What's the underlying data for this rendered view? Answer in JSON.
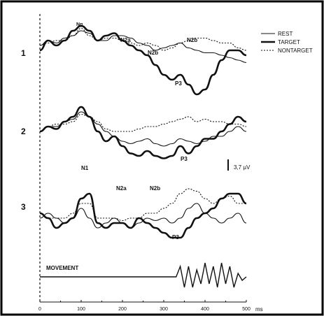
{
  "legend": [
    {
      "label": "REST",
      "style": "thin"
    },
    {
      "label": "TARGET",
      "style": "thick"
    },
    {
      "label": "NONTARGET",
      "style": "dotted"
    }
  ],
  "movement_label": "MOVEMENT",
  "scale_bar_label": "3,7 µV",
  "x_unit": "ms",
  "x_ticks": [
    "0",
    "100",
    "200",
    "300",
    "400",
    "500"
  ],
  "chart_data": {
    "type": "line",
    "xlim": [
      0,
      500
    ],
    "colors": {
      "ink": "#111111",
      "frame": "#000000"
    },
    "panels": [
      {
        "label": "1",
        "annotations": [
          "Ng",
          "N2a",
          "N2b",
          "N2b",
          "P3"
        ],
        "series": [
          {
            "name": "REST",
            "x": [
              0,
              20,
              40,
              60,
              80,
              100,
              120,
              140,
              160,
              180,
              200,
              220,
              240,
              260,
              280,
              300,
              320,
              340,
              360,
              380,
              400,
              420,
              440,
              460,
              480,
              500
            ],
            "y": [
              1,
              2,
              1.5,
              2.5,
              3,
              4,
              3.5,
              2,
              2,
              3,
              3,
              2.5,
              1.5,
              1,
              0,
              0.5,
              1,
              1.5,
              0.5,
              0,
              -0.5,
              -0.5,
              -1,
              -1.5,
              -2,
              -2.5
            ]
          },
          {
            "name": "TARGET",
            "x": [
              0,
              20,
              40,
              60,
              80,
              100,
              120,
              140,
              160,
              180,
              200,
              220,
              240,
              260,
              280,
              300,
              320,
              340,
              360,
              380,
              400,
              420,
              440,
              460,
              480,
              500
            ],
            "y": [
              0,
              2,
              1,
              2,
              4,
              5,
              4,
              2,
              3,
              3.5,
              2,
              1,
              0,
              -1,
              -3,
              -5,
              -6,
              -5,
              -7,
              -9,
              -8,
              -5,
              -2,
              0,
              0,
              -1
            ]
          },
          {
            "name": "NONTARGET",
            "x": [
              0,
              20,
              40,
              60,
              80,
              100,
              120,
              140,
              160,
              180,
              200,
              220,
              240,
              260,
              280,
              300,
              320,
              340,
              360,
              380,
              400,
              420,
              440,
              460,
              480,
              500
            ],
            "y": [
              1,
              1.5,
              2,
              2,
              3,
              4.5,
              3,
              2,
              2.5,
              2.5,
              2,
              1.5,
              1,
              1.5,
              1,
              0,
              0.5,
              1.5,
              2,
              2.5,
              2.5,
              2,
              1.5,
              1.5,
              0.5,
              0
            ]
          }
        ]
      },
      {
        "label": "2",
        "annotations": [
          "P3"
        ],
        "series": [
          {
            "name": "REST",
            "x": [
              0,
              20,
              40,
              60,
              80,
              100,
              120,
              140,
              160,
              180,
              200,
              220,
              240,
              260,
              280,
              300,
              320,
              340,
              360,
              380,
              400,
              420,
              440,
              460,
              480,
              500
            ],
            "y": [
              0,
              1,
              1,
              2,
              2.5,
              4,
              3,
              1.5,
              0,
              -1,
              -2,
              -2.5,
              -2,
              -1.5,
              -2.5,
              -3,
              -2.5,
              -1.5,
              -2,
              -2.5,
              -2,
              -1,
              -1,
              0,
              1,
              0
            ]
          },
          {
            "name": "TARGET",
            "x": [
              0,
              20,
              40,
              60,
              80,
              100,
              120,
              140,
              160,
              180,
              200,
              220,
              240,
              260,
              280,
              300,
              320,
              340,
              360,
              380,
              400,
              420,
              440,
              460,
              480,
              500
            ],
            "y": [
              0,
              1,
              0.5,
              2,
              3,
              5,
              3,
              0,
              -2,
              -1,
              -3,
              -4.5,
              -5,
              -4,
              -5,
              -5.5,
              -5,
              -3,
              -4.5,
              -3,
              -1.5,
              -1.5,
              0,
              1.5,
              3,
              2
            ]
          },
          {
            "name": "NONTARGET",
            "x": [
              0,
              20,
              40,
              60,
              80,
              100,
              120,
              140,
              160,
              180,
              200,
              220,
              240,
              260,
              280,
              300,
              320,
              340,
              360,
              380,
              400,
              420,
              440,
              460,
              480,
              500
            ],
            "y": [
              0,
              1,
              1.5,
              1.5,
              2,
              3.5,
              3,
              2,
              0.5,
              0,
              0,
              0,
              0.5,
              1,
              1,
              1.5,
              2,
              2.5,
              3,
              2,
              2.5,
              2,
              2,
              1.5,
              1.5,
              1
            ]
          }
        ]
      },
      {
        "label": "3",
        "annotations": [
          "N1",
          "N2a",
          "N2b",
          "P3"
        ],
        "series": [
          {
            "name": "REST",
            "x": [
              0,
              20,
              40,
              60,
              80,
              100,
              120,
              140,
              160,
              180,
              200,
              220,
              240,
              260,
              280,
              300,
              320,
              340,
              360,
              380,
              400,
              420,
              440,
              460,
              480,
              500
            ],
            "y": [
              -1,
              0,
              -1,
              -2,
              -1,
              1,
              -1,
              -3,
              -2,
              -1,
              -2,
              -3,
              -2,
              -1,
              -1.5,
              -1,
              -2,
              -1,
              1,
              2,
              0,
              -1,
              -2,
              -1,
              0,
              -2
            ]
          },
          {
            "name": "TARGET",
            "x": [
              0,
              20,
              40,
              60,
              80,
              100,
              120,
              140,
              160,
              180,
              200,
              220,
              240,
              260,
              280,
              300,
              320,
              340,
              360,
              380,
              400,
              420,
              440,
              460,
              480,
              500
            ],
            "y": [
              0,
              -1,
              -3,
              -2,
              -1,
              3,
              4,
              -2,
              -3,
              -2,
              -2,
              -3,
              -1,
              -2,
              -3,
              -4,
              -5,
              -5,
              -3,
              -1,
              0,
              1,
              3,
              4,
              4,
              2
            ]
          },
          {
            "name": "NONTARGET",
            "x": [
              0,
              20,
              40,
              60,
              80,
              100,
              120,
              140,
              160,
              180,
              200,
              220,
              240,
              260,
              280,
              300,
              320,
              340,
              360,
              380,
              400,
              420,
              440,
              460,
              480,
              500
            ],
            "y": [
              0,
              -1,
              -1,
              -1,
              0,
              2,
              2,
              -1,
              -1,
              -1,
              -1.5,
              -1,
              -1,
              0,
              0,
              1,
              2,
              4,
              5,
              4.5,
              3,
              2,
              3,
              3.5,
              2,
              2
            ]
          }
        ]
      }
    ],
    "movement": {
      "baseline_until_ms": 330,
      "x": [
        330,
        340,
        350,
        360,
        370,
        380,
        390,
        400,
        410,
        420,
        430,
        440,
        450,
        460,
        470,
        480,
        490,
        500
      ],
      "y": [
        0,
        3,
        -3,
        3,
        -3,
        2,
        -2,
        4,
        -2,
        3,
        -3,
        4,
        -2,
        3,
        -3,
        1,
        -1,
        0
      ]
    }
  }
}
